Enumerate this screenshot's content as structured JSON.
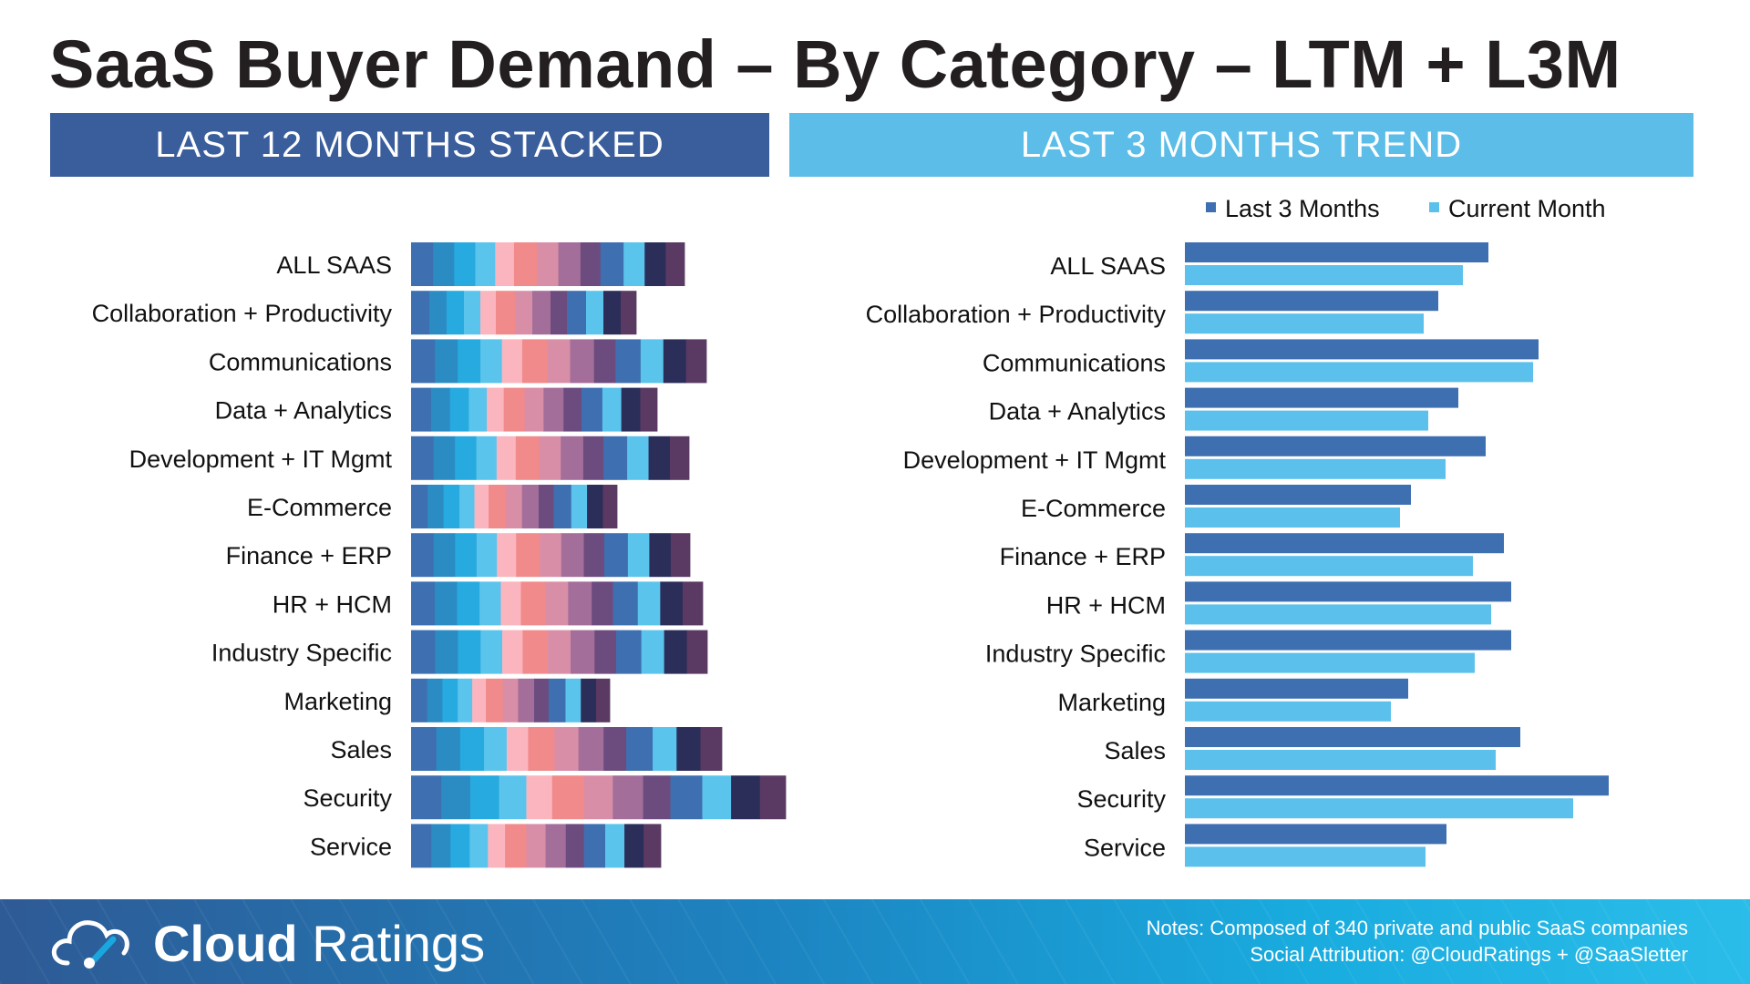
{
  "page": {
    "title": "SaaS Buyer Demand – By Category – LTM + L3M"
  },
  "colors": {
    "header_left": "#3a5d9c",
    "header_right": "#5bbde8",
    "last_3_months": "#3e6fb0",
    "current_month": "#5bc0eb",
    "stack_palette": [
      "#3e6fb0",
      "#2b8cc4",
      "#27aadf",
      "#5bc4ec",
      "#fbb5bf",
      "#f18a8a",
      "#d98ea8",
      "#a36e99",
      "#6c4b7e",
      "#3e6fb0",
      "#5bc4ec",
      "#2b2e59",
      "#5a3a63"
    ]
  },
  "sections": {
    "left_header": "LAST 12 MONTHS STACKED",
    "right_header": "LAST 3 MONTHS TREND"
  },
  "chart_data": [
    {
      "type": "bar",
      "stacked": true,
      "orientation": "horizontal",
      "title": "LAST 12 MONTHS STACKED",
      "categories": [
        "ALL SAAS",
        "Collaboration + Productivity",
        "Communications",
        "Data + Analytics",
        "Development + IT Mgmt",
        "E-Commerce",
        "Finance + ERP",
        "HR + HCM",
        "Industry Specific",
        "Marketing",
        "Sales",
        "Security",
        "Service"
      ],
      "segments_per_bar": 13,
      "totals": [
        300,
        247,
        324,
        270,
        305,
        226,
        306,
        320,
        325,
        218,
        341,
        411,
        274
      ],
      "axis_visible": false,
      "legend": "none"
    },
    {
      "type": "bar",
      "orientation": "horizontal",
      "title": "LAST 3 MONTHS TREND",
      "categories": [
        "ALL SAAS",
        "Collaboration + Productivity",
        "Communications",
        "Data + Analytics",
        "Development + IT Mgmt",
        "E-Commerce",
        "Finance + ERP",
        "HR + HCM",
        "Industry Specific",
        "Marketing",
        "Sales",
        "Security",
        "Service"
      ],
      "series": [
        {
          "name": "Last 3 Months",
          "values": [
            333,
            278,
            388,
            300,
            330,
            248,
            350,
            358,
            358,
            245,
            368,
            465,
            287
          ]
        },
        {
          "name": "Current Month",
          "values": [
            305,
            262,
            382,
            267,
            286,
            236,
            316,
            336,
            318,
            226,
            341,
            426,
            264
          ]
        }
      ],
      "axis_visible": false,
      "legend": "top-right"
    }
  ],
  "footer": {
    "brand_bold": "Cloud",
    "brand_light": "Ratings",
    "notes_line1": "Notes: Composed of 340 private and public SaaS companies",
    "notes_line2": "Social Attribution: @CloudRatings + @SaaSletter"
  }
}
